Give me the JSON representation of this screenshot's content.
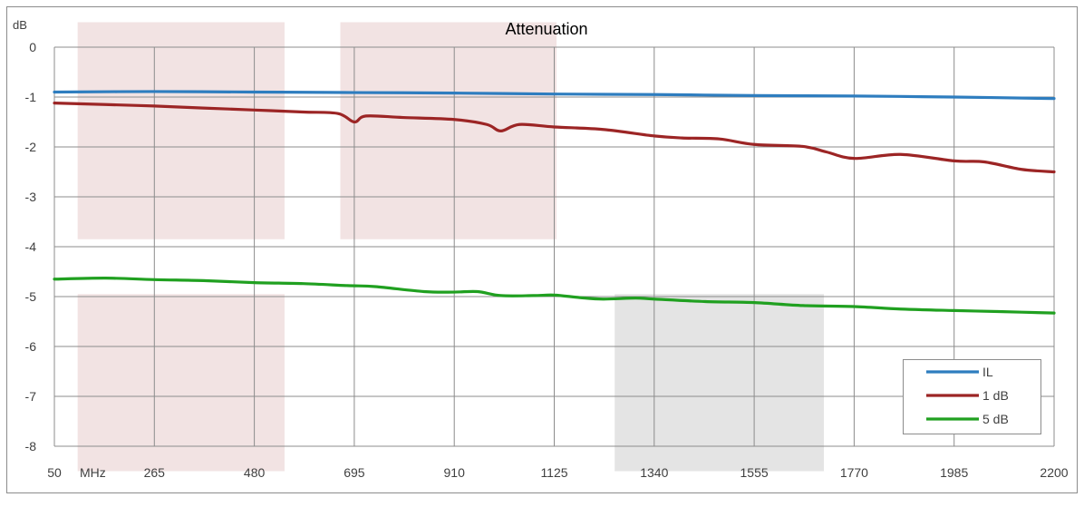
{
  "chart_data": {
    "type": "line",
    "title": "Attenuation",
    "ylabel": "dB",
    "x_unit_label": "MHz",
    "xlim": [
      50,
      2200
    ],
    "ylim": [
      -8,
      0
    ],
    "x_ticks": [
      50,
      265,
      480,
      695,
      910,
      1125,
      1340,
      1555,
      1770,
      1985,
      2200
    ],
    "y_ticks": [
      0,
      -1,
      -2,
      -3,
      -4,
      -5,
      -6,
      -7,
      -8
    ],
    "grid": true,
    "legend_position": "bottom-right",
    "shaded_regions": [
      {
        "x": [
          100,
          545
        ],
        "y": [
          -3.85,
          0.5
        ],
        "color": "#f2e3e3"
      },
      {
        "x": [
          100,
          545
        ],
        "y": [
          -8.5,
          -4.95
        ],
        "color": "#f2e3e3"
      },
      {
        "x": [
          665,
          1130
        ],
        "y": [
          -3.85,
          0.5
        ],
        "color": "#f2e3e3"
      },
      {
        "x": [
          1255,
          1705
        ],
        "y": [
          -8.5,
          -4.95
        ],
        "color": "#e4e4e4"
      }
    ],
    "series": [
      {
        "name": "IL",
        "color": "#2e7dbf",
        "x": [
          50,
          265,
          480,
          695,
          910,
          1125,
          1340,
          1555,
          1770,
          1985,
          2200
        ],
        "values": [
          -0.9,
          -0.89,
          -0.9,
          -0.91,
          -0.92,
          -0.94,
          -0.95,
          -0.97,
          -0.98,
          -1.0,
          -1.03
        ]
      },
      {
        "name": "1 dB",
        "color": "#9c2525",
        "x": [
          50,
          160,
          265,
          370,
          480,
          585,
          660,
          695,
          720,
          800,
          910,
          980,
          1010,
          1050,
          1125,
          1230,
          1340,
          1400,
          1480,
          1555,
          1660,
          1710,
          1770,
          1870,
          1985,
          2050,
          2130,
          2200
        ],
        "values": [
          -1.12,
          -1.15,
          -1.18,
          -1.22,
          -1.26,
          -1.3,
          -1.33,
          -1.5,
          -1.38,
          -1.41,
          -1.45,
          -1.55,
          -1.68,
          -1.55,
          -1.6,
          -1.65,
          -1.78,
          -1.82,
          -1.84,
          -1.95,
          -1.99,
          -2.1,
          -2.23,
          -2.15,
          -2.28,
          -2.3,
          -2.45,
          -2.5
        ]
      },
      {
        "name": "5 dB",
        "color": "#20a020",
        "x": [
          50,
          160,
          265,
          370,
          480,
          585,
          680,
          740,
          845,
          910,
          960,
          1010,
          1080,
          1125,
          1180,
          1230,
          1300,
          1340,
          1450,
          1555,
          1660,
          1770,
          1870,
          1985,
          2080,
          2200
        ],
        "values": [
          -4.65,
          -4.63,
          -4.66,
          -4.68,
          -4.72,
          -4.74,
          -4.78,
          -4.8,
          -4.9,
          -4.91,
          -4.9,
          -4.98,
          -4.98,
          -4.97,
          -5.02,
          -5.05,
          -5.03,
          -5.05,
          -5.1,
          -5.12,
          -5.18,
          -5.2,
          -5.25,
          -5.28,
          -5.3,
          -5.33
        ]
      }
    ]
  }
}
